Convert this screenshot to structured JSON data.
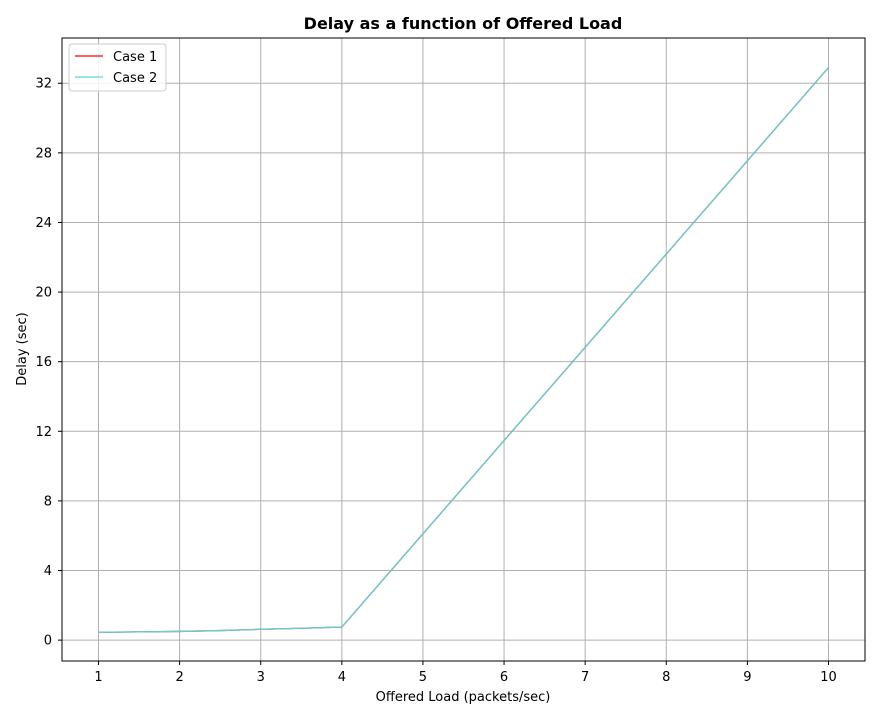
{
  "chart_data": {
    "type": "line",
    "title": "Delay as a function of Offered Load",
    "xlabel": "Offered Load (packets/sec)",
    "ylabel": "Delay (sec)",
    "xlim": [
      0.55,
      10.45
    ],
    "ylim": [
      -1.2,
      34.6
    ],
    "xticks": [
      1,
      2,
      3,
      4,
      5,
      6,
      7,
      8,
      9,
      10
    ],
    "yticks": [
      0,
      4,
      8,
      12,
      16,
      20,
      24,
      28,
      32
    ],
    "grid": true,
    "legend_position": "top-left",
    "x": [
      1,
      2,
      2.5,
      3,
      3.5,
      4,
      10
    ],
    "series": [
      {
        "name": "Case 1",
        "color": "#ff0000",
        "values": [
          0.45,
          0.5,
          0.55,
          0.62,
          0.68,
          0.75,
          32.9
        ]
      },
      {
        "name": "Case 2",
        "color": "#5fd3d3",
        "values": [
          0.45,
          0.5,
          0.55,
          0.62,
          0.68,
          0.75,
          32.9
        ]
      }
    ]
  }
}
